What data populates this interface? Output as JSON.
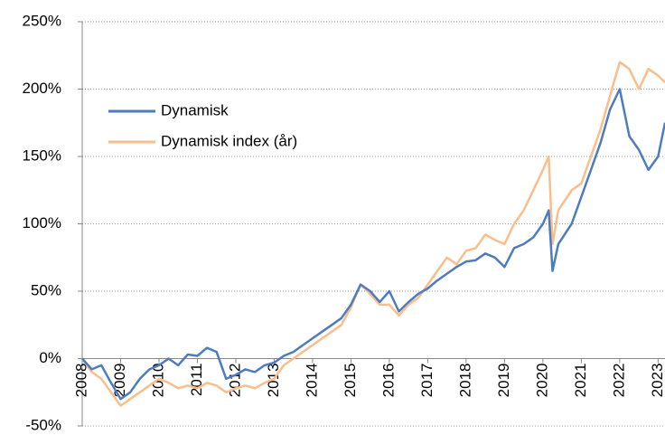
{
  "chart_data": {
    "type": "line",
    "x": [
      2008,
      2008.25,
      2008.5,
      2008.75,
      2009,
      2009.25,
      2009.5,
      2009.75,
      2010,
      2010.25,
      2010.5,
      2010.75,
      2011,
      2011.25,
      2011.5,
      2011.75,
      2012,
      2012.25,
      2012.5,
      2012.75,
      2013,
      2013.25,
      2013.5,
      2013.75,
      2014,
      2014.25,
      2014.5,
      2014.75,
      2015,
      2015.25,
      2015.5,
      2015.75,
      2016,
      2016.25,
      2016.5,
      2016.75,
      2017,
      2017.25,
      2017.5,
      2017.75,
      2018,
      2018.25,
      2018.5,
      2018.75,
      2019,
      2019.25,
      2019.5,
      2019.75,
      2020,
      2020.15,
      2020.25,
      2020.4,
      2020.75,
      2021,
      2021.25,
      2021.5,
      2021.75,
      2022,
      2022.25,
      2022.5,
      2022.75,
      2023,
      2023.18
    ],
    "series": [
      {
        "name": "Dynamisk",
        "color": "#4f7bbf",
        "values": [
          0,
          -8,
          -5,
          -18,
          -30,
          -25,
          -15,
          -8,
          -5,
          0,
          -5,
          3,
          2,
          8,
          5,
          -15,
          -12,
          -8,
          -10,
          -5,
          -3,
          2,
          5,
          10,
          15,
          20,
          25,
          30,
          40,
          55,
          50,
          42,
          50,
          35,
          42,
          48,
          52,
          58,
          63,
          68,
          72,
          73,
          78,
          75,
          68,
          82,
          85,
          90,
          100,
          110,
          65,
          85,
          100,
          120,
          140,
          160,
          185,
          200,
          165,
          155,
          140,
          150,
          175
        ]
      },
      {
        "name": "Dynamisk index (år)",
        "color": "#f9be8c",
        "values": [
          0,
          -10,
          -15,
          -25,
          -35,
          -30,
          -25,
          -20,
          -15,
          -18,
          -22,
          -20,
          -22,
          -18,
          -20,
          -25,
          -22,
          -20,
          -22,
          -18,
          -15,
          -5,
          0,
          5,
          10,
          15,
          20,
          25,
          38,
          55,
          48,
          40,
          40,
          32,
          40,
          45,
          55,
          65,
          75,
          70,
          80,
          82,
          92,
          88,
          85,
          100,
          110,
          125,
          140,
          150,
          85,
          110,
          125,
          130,
          150,
          170,
          195,
          220,
          215,
          200,
          215,
          210,
          205
        ]
      }
    ],
    "xlim": [
      2008,
      2023.18
    ],
    "xticks": [
      2008,
      2009,
      2010,
      2011,
      2012,
      2013,
      2014,
      2015,
      2016,
      2017,
      2018,
      2019,
      2020,
      2021,
      2022,
      2023
    ],
    "ylim": [
      -50,
      250
    ],
    "yticks": [
      {
        "value": -50,
        "label": "-50%"
      },
      {
        "value": 0,
        "label": "0%"
      },
      {
        "value": 50,
        "label": "50%"
      },
      {
        "value": 100,
        "label": "100%"
      },
      {
        "value": 150,
        "label": "150%"
      },
      {
        "value": 200,
        "label": "200%"
      },
      {
        "value": 250,
        "label": "250%"
      }
    ],
    "grid": true,
    "legend": "upper-left"
  }
}
